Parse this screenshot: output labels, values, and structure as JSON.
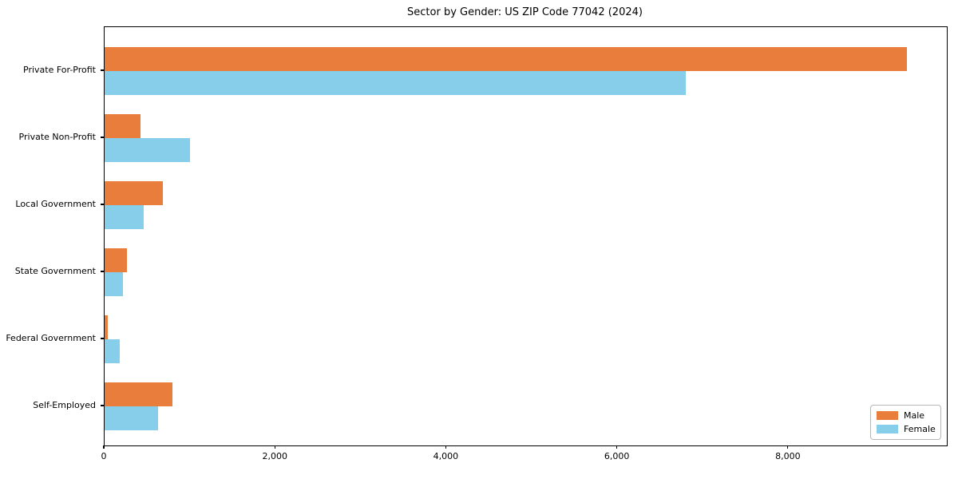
{
  "chart_data": {
    "type": "bar",
    "orientation": "horizontal",
    "title": "Sector by Gender: US ZIP Code 77042 (2024)",
    "categories": [
      "Private For-Profit",
      "Private Non-Profit",
      "Local Government",
      "State Government",
      "Federal Government",
      "Self-Employed"
    ],
    "series": [
      {
        "name": "Male",
        "color": "#E87D3C",
        "values": [
          9380,
          420,
          680,
          260,
          40,
          790
        ]
      },
      {
        "name": "Female",
        "color": "#87CEEB",
        "values": [
          6800,
          1000,
          460,
          215,
          180,
          630
        ]
      }
    ],
    "xlabel": "",
    "ylabel": "",
    "xlim": [
      0,
      9850
    ],
    "xticks": [
      0,
      2000,
      4000,
      6000,
      8000
    ],
    "xtick_labels": [
      "0",
      "2,000",
      "4,000",
      "6,000",
      "8,000"
    ],
    "legend_position": "lower right",
    "grid": false,
    "plot_background": "#ffffff"
  }
}
